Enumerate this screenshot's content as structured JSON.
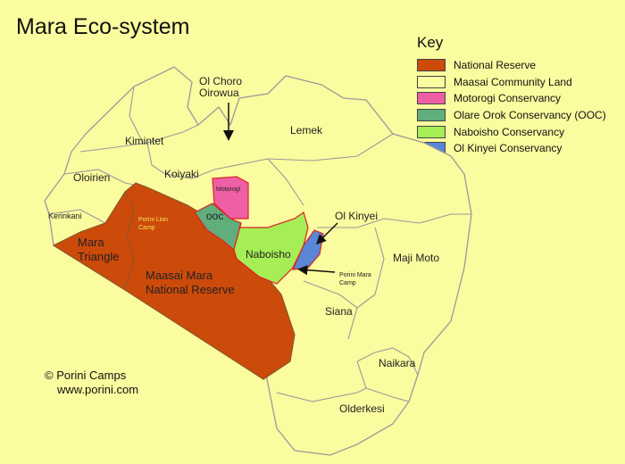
{
  "title": "Mara Eco-system",
  "key": {
    "title": "Key",
    "items": [
      {
        "label": "National Reserve",
        "color": "#cc4a0a"
      },
      {
        "label": "Maasai Community Land",
        "color": "#fbfb9f"
      },
      {
        "label": "Motorogi Conservancy",
        "color": "#ee5fa6"
      },
      {
        "label": "Olare Orok Conservancy (OOC)",
        "color": "#5fae7c"
      },
      {
        "label": "Naboisho Conservancy",
        "color": "#a5ee55"
      },
      {
        "label": "Ol Kinyei Conservancy",
        "color": "#5a86d6"
      }
    ]
  },
  "labels": {
    "ol_choro_1": "Ol Choro",
    "ol_choro_2": "Oirowua",
    "lemek": "Lemek",
    "kimintet": "Kimintet",
    "oloirien": "Oloirien",
    "koiyaki": "Koiyaki",
    "kerinkani": "Kerinkani",
    "motorogi": "Motorogi",
    "porini_lion_1": "Porini Lion",
    "porini_lion_2": "Camp",
    "ooc": "ooc",
    "ol_kinyei": "Ol Kinyei",
    "mara_triangle_1": "Mara",
    "mara_triangle_2": "Triangle",
    "naboisho": "Naboisho",
    "maji_moto": "Maji Moto",
    "maasai_mara_1": "Maasai Mara",
    "maasai_mara_2": "National Reserve",
    "porini_mara_1": "Porini Mara",
    "porini_mara_2": "Camp",
    "siana": "Siana",
    "naikara": "Naikara",
    "olderkesi": "Olderkesi"
  },
  "copyright": {
    "line1": "© Porini Camps",
    "line2": "www.porini.com"
  }
}
